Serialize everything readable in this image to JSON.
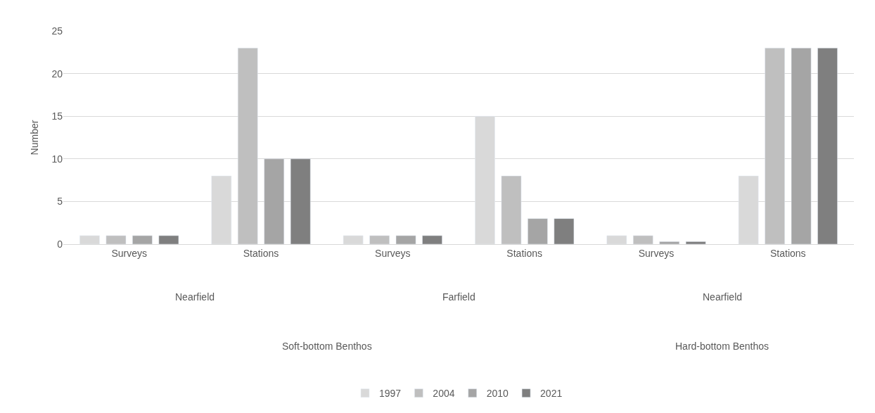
{
  "chart_data": {
    "type": "bar",
    "ylabel": "Number",
    "categories": [
      "Surveys",
      "Stations",
      "Surveys",
      "Stations",
      "Surveys",
      "Stations"
    ],
    "series": [
      {
        "name": "1997",
        "color": "#d9d9d9",
        "values": [
          1,
          8,
          1,
          15,
          1,
          8
        ]
      },
      {
        "name": "2004",
        "color": "#bfbfbf",
        "values": [
          1,
          23,
          1,
          8,
          1,
          23
        ]
      },
      {
        "name": "2010",
        "color": "#a5a5a5",
        "values": [
          1,
          10,
          1,
          3,
          0.3,
          23
        ]
      },
      {
        "name": "2021",
        "color": "#7f7f7f",
        "values": [
          1,
          10,
          1,
          3,
          0.3,
          23
        ]
      }
    ],
    "annotations": [
      "Nearfield",
      "Farfield",
      "Nearfield",
      "Soft-bottom Benthos",
      "Hard-bottom Benthos"
    ],
    "ylim": [
      0,
      25
    ],
    "yticks": [
      0,
      5,
      10,
      15,
      20,
      25
    ],
    "grid": "y",
    "legend": "bottom"
  }
}
